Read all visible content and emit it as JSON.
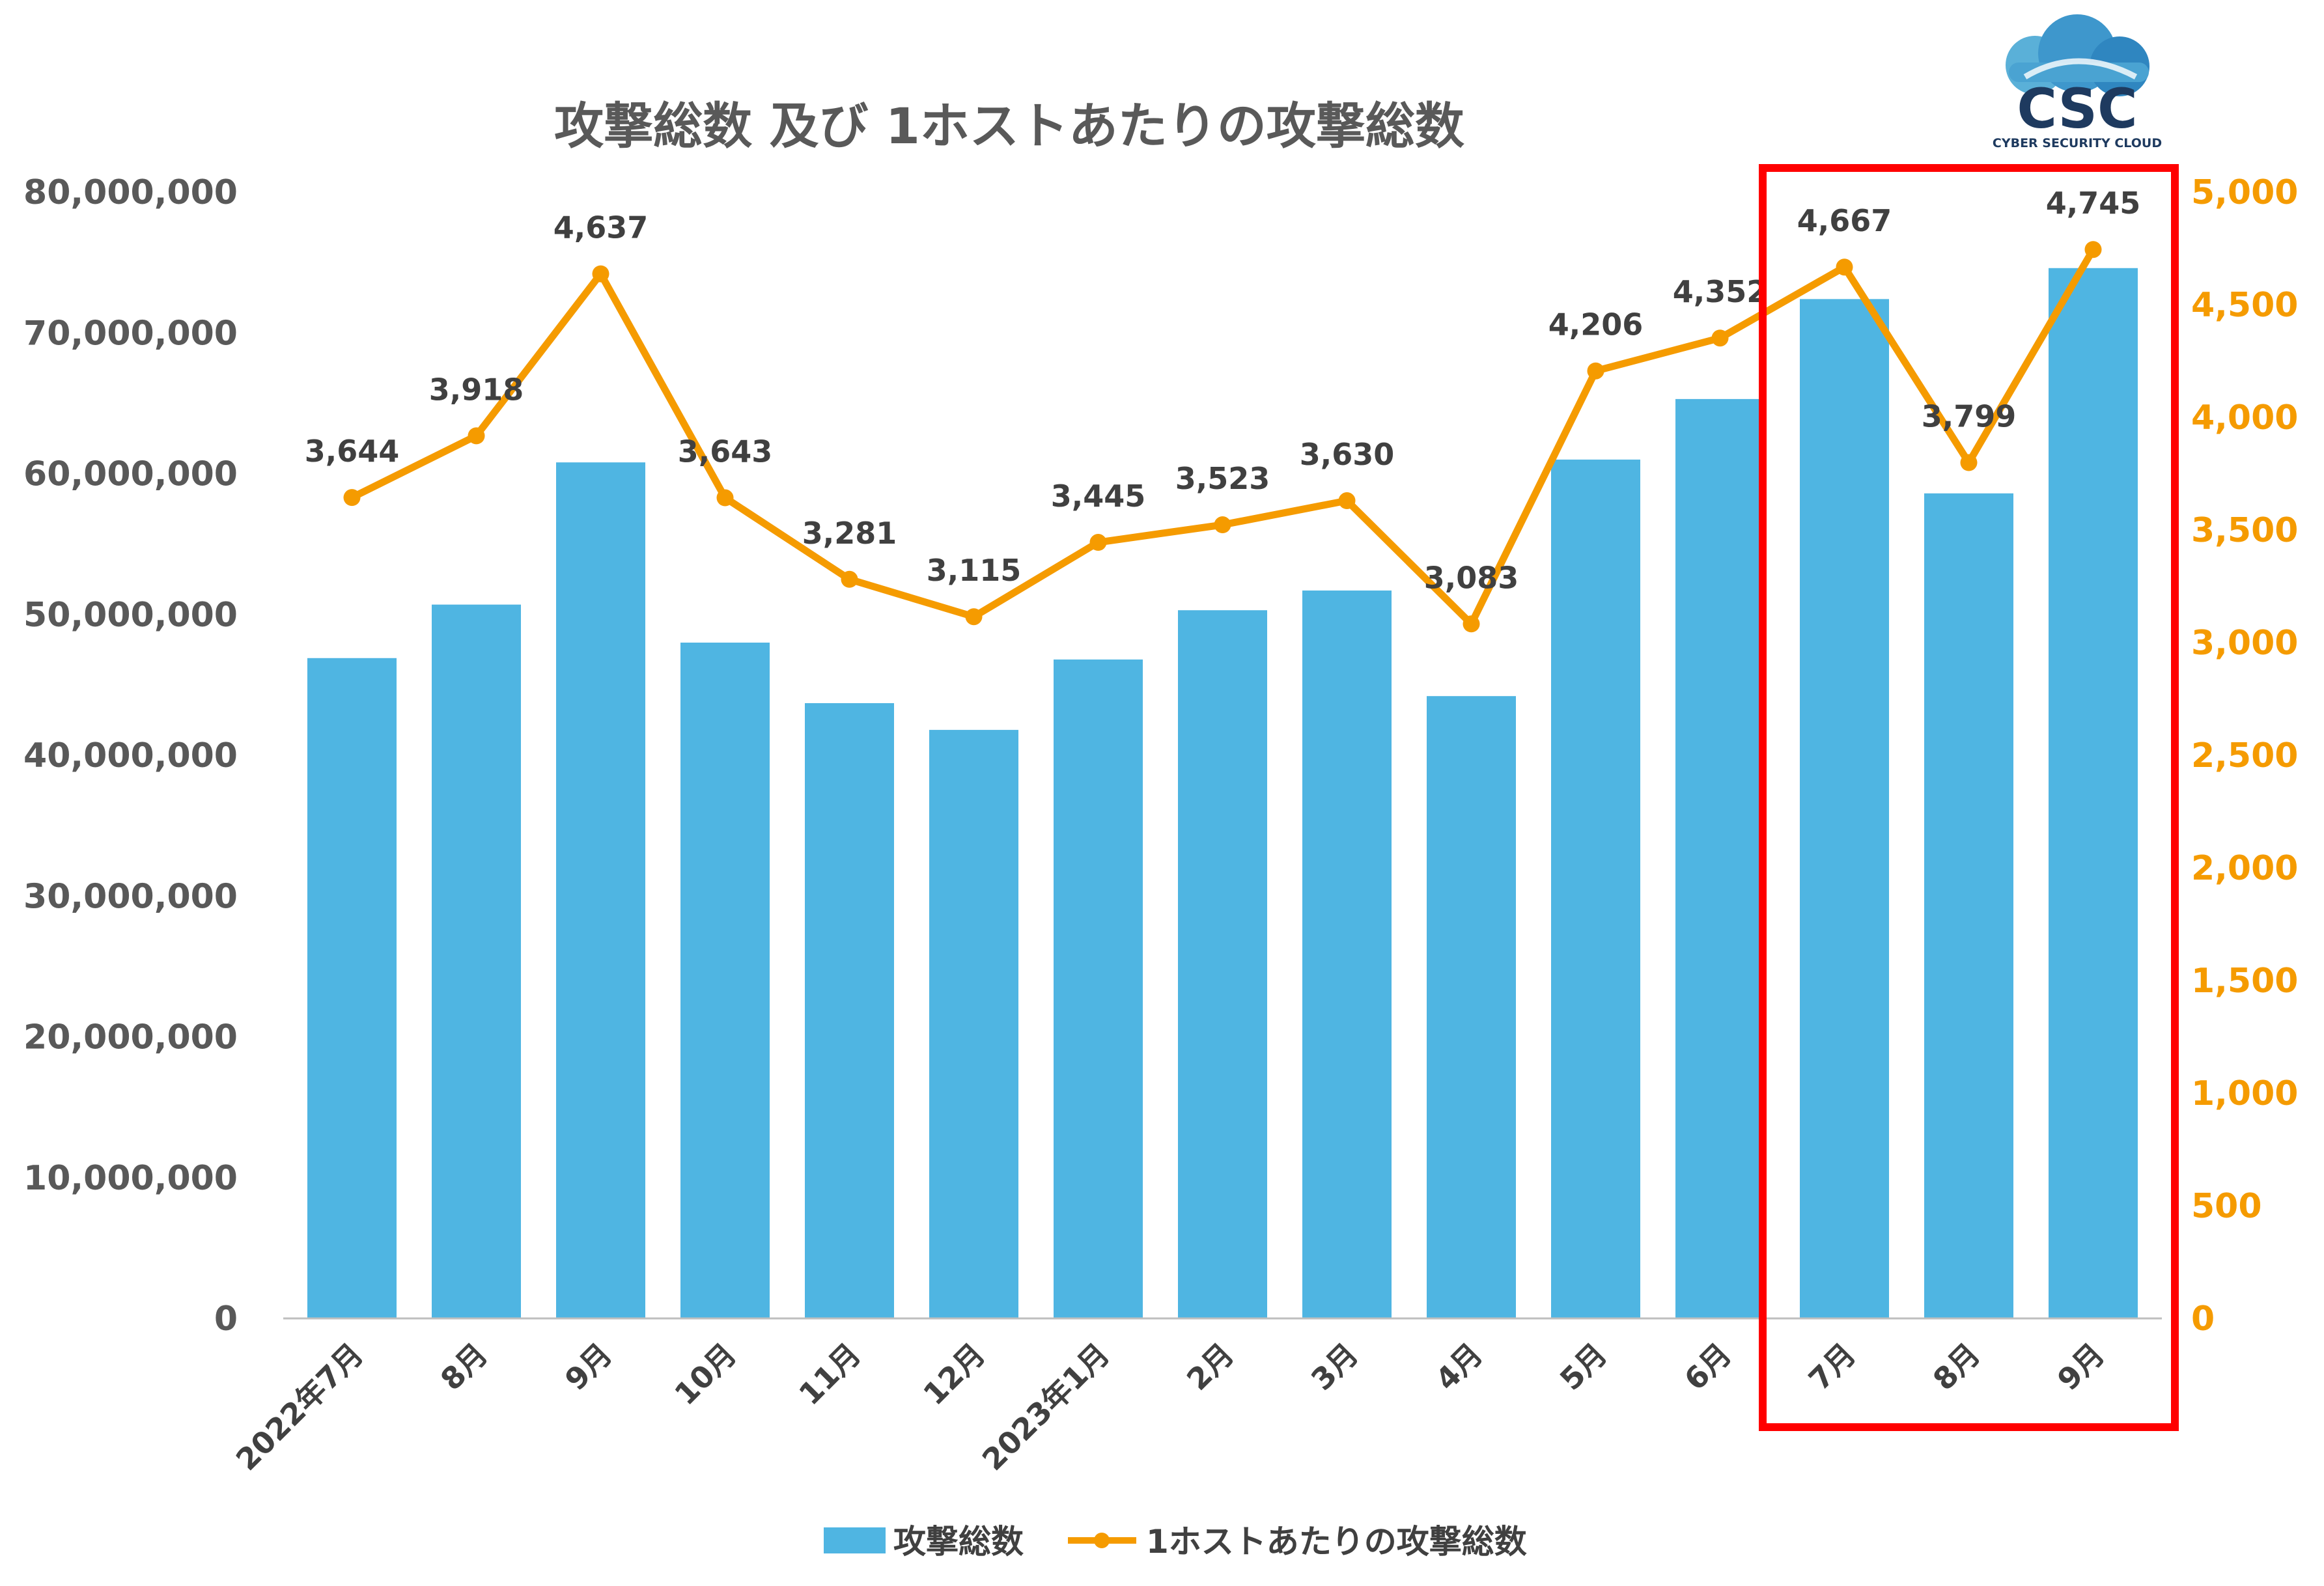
{
  "chart_data": {
    "type": "bar+line",
    "title": "攻撃総数 及び 1ホストあたりの攻撃総数",
    "categories": [
      "2022年7月",
      "8月",
      "9月",
      "10月",
      "11月",
      "12月",
      "2023年1月",
      "2月",
      "3月",
      "4月",
      "5月",
      "6月",
      "7月",
      "8月",
      "9月"
    ],
    "series": [
      {
        "name": "攻撃総数",
        "type": "bar",
        "axis": "left",
        "color": "#4fb5e2",
        "values": [
          46900000,
          50700000,
          60800000,
          48000000,
          43700000,
          41800000,
          46800000,
          50300000,
          51700000,
          44200000,
          61000000,
          65300000,
          72400000,
          58600000,
          74600000
        ]
      },
      {
        "name": "1ホストあたりの攻撃総数",
        "type": "line",
        "axis": "right",
        "color": "#f59b00",
        "values": [
          3644,
          3918,
          4637,
          3643,
          3281,
          3115,
          3445,
          3523,
          3630,
          3083,
          4206,
          4352,
          4667,
          3799,
          4745
        ],
        "labels": [
          "3,644",
          "3,918",
          "4,637",
          "3,643",
          "3,281",
          "3,115",
          "3,445",
          "3,523",
          "3,630",
          "3,083",
          "4,206",
          "4,352",
          "4,667",
          "3,799",
          "4,745"
        ]
      }
    ],
    "y_left": {
      "min": 0,
      "max": 80000000,
      "ticks": [
        "0",
        "10,000,000",
        "20,000,000",
        "30,000,000",
        "40,000,000",
        "50,000,000",
        "60,000,000",
        "70,000,000",
        "80,000,000"
      ]
    },
    "y_right": {
      "min": 0,
      "max": 5000,
      "ticks": [
        "0",
        "500",
        "1,000",
        "1,500",
        "2,000",
        "2,500",
        "3,000",
        "3,500",
        "4,000",
        "4,500",
        "5,000"
      ],
      "color": "#f59b00"
    },
    "highlight": {
      "categories": [
        "7月",
        "8月",
        "9月"
      ],
      "color": "#ff0000"
    },
    "legend": {
      "placement": "bottom"
    },
    "grid": false
  },
  "logo": {
    "text": "CSC",
    "subtitle": "CYBER SECURITY CLOUD"
  }
}
